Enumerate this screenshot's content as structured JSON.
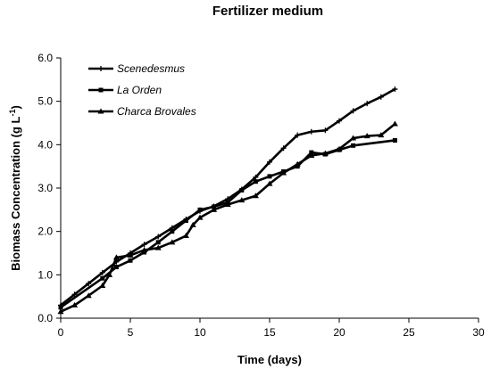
{
  "chart_data": {
    "type": "line",
    "title": "Fertilizer medium",
    "xlabel": "Time (days)",
    "ylabel_main": "Biomass Concentration (g L",
    "ylabel_sup": "-1",
    "ylabel_end": ")",
    "xlim": [
      0,
      30
    ],
    "ylim": [
      0,
      6
    ],
    "xticks": [
      0,
      5,
      10,
      15,
      20,
      25,
      30
    ],
    "xtick_labels": [
      "0",
      "5",
      "10",
      "15",
      "20",
      "25",
      "30"
    ],
    "yticks": [
      0,
      1,
      2,
      3,
      4,
      5,
      6
    ],
    "ytick_labels": [
      "0.0",
      "1.0",
      "2.0",
      "3.0",
      "4.0",
      "5.0",
      "6.0"
    ],
    "grid": false,
    "legend_position": "top-left",
    "series": [
      {
        "name": "Scenedesmus",
        "marker": "plus",
        "color": "#000000",
        "x": [
          0,
          1,
          2,
          3,
          4,
          5,
          6,
          7,
          8,
          9,
          10,
          11,
          12,
          13,
          14,
          15,
          16,
          17,
          18,
          19,
          20,
          21,
          22,
          23,
          24
        ],
        "y": [
          0.3,
          0.55,
          0.8,
          1.05,
          1.3,
          1.5,
          1.7,
          1.88,
          2.08,
          2.28,
          2.47,
          2.58,
          2.75,
          2.97,
          3.25,
          3.6,
          3.92,
          4.22,
          4.3,
          4.33,
          4.55,
          4.78,
          4.95,
          5.1,
          5.28
        ]
      },
      {
        "name": "La Orden",
        "marker": "square",
        "color": "#000000",
        "x": [
          0,
          3,
          4,
          5,
          6,
          7,
          8,
          9,
          10,
          11,
          12,
          13,
          14,
          15,
          16,
          17,
          18,
          19,
          20,
          21,
          24
        ],
        "y": [
          0.25,
          0.92,
          1.18,
          1.33,
          1.52,
          1.75,
          2.0,
          2.25,
          2.5,
          2.57,
          2.67,
          2.95,
          3.15,
          3.27,
          3.38,
          3.5,
          3.82,
          3.78,
          3.88,
          3.98,
          4.1
        ]
      },
      {
        "name": "Charca Brovales",
        "marker": "triangle",
        "color": "#000000",
        "x": [
          0,
          1,
          2,
          3,
          3.5,
          4,
          5,
          6,
          7,
          8,
          9,
          9.5,
          10,
          11,
          12,
          13,
          14,
          15,
          16,
          17,
          18,
          19,
          20,
          21,
          22,
          23,
          24
        ],
        "y": [
          0.15,
          0.3,
          0.52,
          0.75,
          1.0,
          1.4,
          1.45,
          1.57,
          1.62,
          1.75,
          1.9,
          2.15,
          2.32,
          2.5,
          2.62,
          2.72,
          2.82,
          3.1,
          3.35,
          3.55,
          3.75,
          3.8,
          3.9,
          4.15,
          4.2,
          4.22,
          4.48
        ]
      }
    ]
  }
}
